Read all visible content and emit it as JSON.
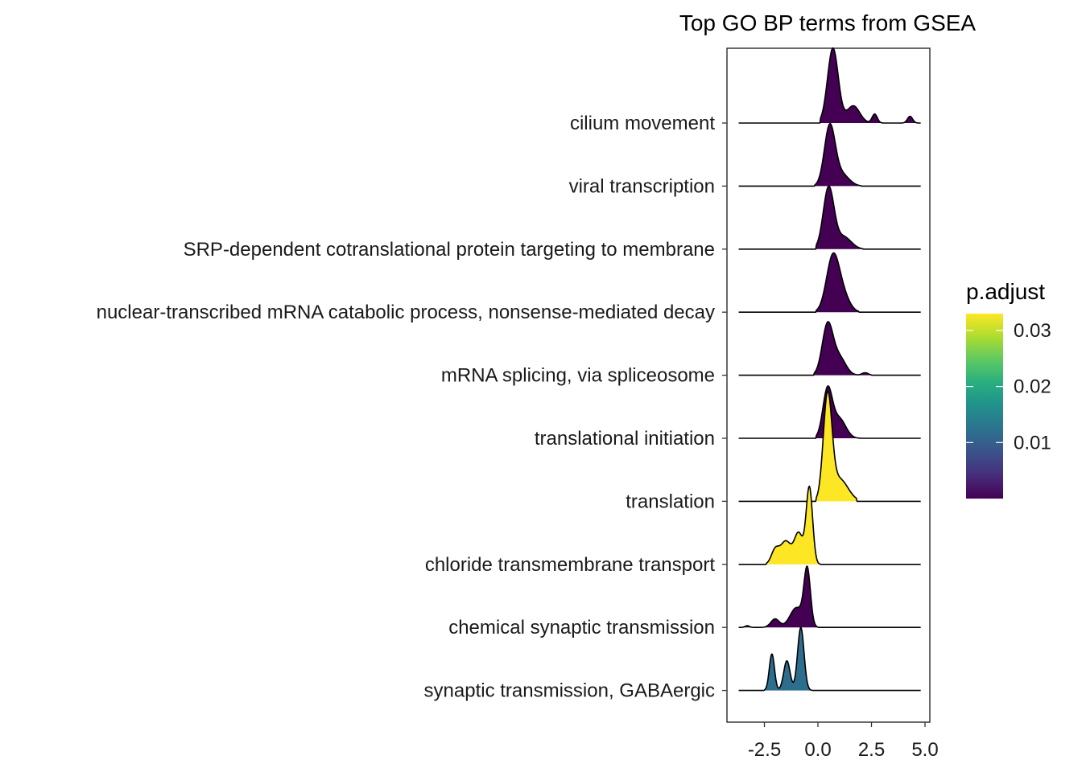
{
  "chart_data": {
    "type": "ridgeline",
    "title": "Top GO BP terms from GSEA",
    "xlabel": "",
    "ylabel": "",
    "xlim": [
      -4.0,
      5.1
    ],
    "x_ticks": [
      {
        "value": -2.5,
        "label": "-2.5"
      },
      {
        "value": 0.0,
        "label": "0.0"
      },
      {
        "value": 2.5,
        "label": "2.5"
      },
      {
        "value": 5.0,
        "label": "5.0"
      }
    ],
    "grid": false,
    "legend": {
      "title": "p.adjust",
      "position": "right",
      "colormap": "viridis",
      "range": [
        0.0,
        0.033
      ],
      "ticks": [
        {
          "value": 0.01,
          "label": "0.01"
        },
        {
          "value": 0.02,
          "label": "0.02"
        },
        {
          "value": 0.03,
          "label": "0.03"
        }
      ]
    },
    "series": [
      {
        "category": "cilium movement",
        "p_adjust": 0.0002,
        "color": "#440154",
        "ridge_height": 1.19,
        "range": [
          -3.7,
          4.8
        ],
        "fill_range": [
          0.1,
          4.8
        ],
        "peaks": [
          {
            "x": 0.7,
            "s": 0.25,
            "a": 1.0
          },
          {
            "x": 1.65,
            "s": 0.3,
            "a": 0.23
          },
          {
            "x": 2.65,
            "s": 0.12,
            "a": 0.12
          },
          {
            "x": 4.3,
            "s": 0.12,
            "a": 0.09
          }
        ]
      },
      {
        "category": "viral transcription",
        "p_adjust": 0.0002,
        "color": "#440154",
        "ridge_height": 0.99,
        "range": [
          -3.7,
          4.8
        ],
        "fill_range": [
          -0.15,
          2.0
        ],
        "peaks": [
          {
            "x": 0.55,
            "s": 0.25,
            "a": 1.0
          },
          {
            "x": 1.1,
            "s": 0.35,
            "a": 0.2
          }
        ]
      },
      {
        "category": "SRP-dependent cotranslational protein targeting to membrane",
        "p_adjust": 0.0002,
        "color": "#440154",
        "ridge_height": 1.0,
        "range": [
          -3.7,
          4.8
        ],
        "fill_range": [
          -0.1,
          2.1
        ],
        "peaks": [
          {
            "x": 0.5,
            "s": 0.25,
            "a": 1.0
          },
          {
            "x": 1.2,
            "s": 0.35,
            "a": 0.2
          }
        ]
      },
      {
        "category": "nuclear-transcribed mRNA catabolic process, nonsense-mediated decay",
        "p_adjust": 0.0002,
        "color": "#440154",
        "ridge_height": 0.94,
        "range": [
          -3.7,
          4.8
        ],
        "fill_range": [
          -0.1,
          1.9
        ],
        "peaks": [
          {
            "x": 0.7,
            "s": 0.3,
            "a": 1.0
          },
          {
            "x": 1.2,
            "s": 0.3,
            "a": 0.25
          }
        ]
      },
      {
        "category": "mRNA splicing, via spliceosome",
        "p_adjust": 0.0003,
        "color": "#440154",
        "ridge_height": 0.85,
        "range": [
          -3.7,
          4.8
        ],
        "fill_range": [
          -0.2,
          2.5
        ],
        "peaks": [
          {
            "x": 0.45,
            "s": 0.25,
            "a": 1.0
          },
          {
            "x": 1.0,
            "s": 0.3,
            "a": 0.35
          },
          {
            "x": 2.2,
            "s": 0.15,
            "a": 0.05
          }
        ]
      },
      {
        "category": "translational initiation",
        "p_adjust": 0.0002,
        "color": "#440154",
        "ridge_height": 0.83,
        "range": [
          -3.7,
          4.8
        ],
        "fill_range": [
          -0.1,
          2.0
        ],
        "peaks": [
          {
            "x": 0.45,
            "s": 0.22,
            "a": 1.0
          },
          {
            "x": 1.0,
            "s": 0.3,
            "a": 0.4
          }
        ]
      },
      {
        "category": "translation",
        "p_adjust": 0.033,
        "color": "#FDE725",
        "ridge_height": 1.75,
        "range": [
          -3.7,
          4.8
        ],
        "fill_range": [
          -0.1,
          1.8
        ],
        "peaks": [
          {
            "x": 0.45,
            "s": 0.2,
            "a": 1.0
          },
          {
            "x": 1.0,
            "s": 0.4,
            "a": 0.22
          }
        ]
      },
      {
        "category": "chloride transmembrane transport",
        "p_adjust": 0.033,
        "color": "#FDE725",
        "ridge_height": 1.24,
        "range": [
          -3.7,
          4.8
        ],
        "fill_range": [
          -2.4,
          0.1
        ],
        "peaks": [
          {
            "x": -0.4,
            "s": 0.15,
            "a": 1.0
          },
          {
            "x": -0.9,
            "s": 0.2,
            "a": 0.4
          },
          {
            "x": -1.5,
            "s": 0.25,
            "a": 0.3
          },
          {
            "x": -2.0,
            "s": 0.18,
            "a": 0.18
          }
        ]
      },
      {
        "category": "chemical synaptic transmission",
        "p_adjust": 0.0003,
        "color": "#440154",
        "ridge_height": 0.97,
        "range": [
          -3.7,
          4.8
        ],
        "fill_range": [
          -3.7,
          0.0
        ],
        "peaks": [
          {
            "x": -0.5,
            "s": 0.15,
            "a": 1.0
          },
          {
            "x": -1.0,
            "s": 0.3,
            "a": 0.35
          },
          {
            "x": -2.0,
            "s": 0.2,
            "a": 0.15
          },
          {
            "x": -3.3,
            "s": 0.1,
            "a": 0.03
          }
        ]
      },
      {
        "category": "synaptic transmission, GABAergic",
        "p_adjust": 0.0115,
        "color": "#2D6E8E",
        "ridge_height": 1.0,
        "range": [
          -3.7,
          4.8
        ],
        "fill_range": [
          -2.5,
          0.0
        ],
        "peaks": [
          {
            "x": -0.8,
            "s": 0.15,
            "a": 1.0
          },
          {
            "x": -1.45,
            "s": 0.15,
            "a": 0.47
          },
          {
            "x": -2.15,
            "s": 0.12,
            "a": 0.58
          }
        ]
      }
    ]
  }
}
